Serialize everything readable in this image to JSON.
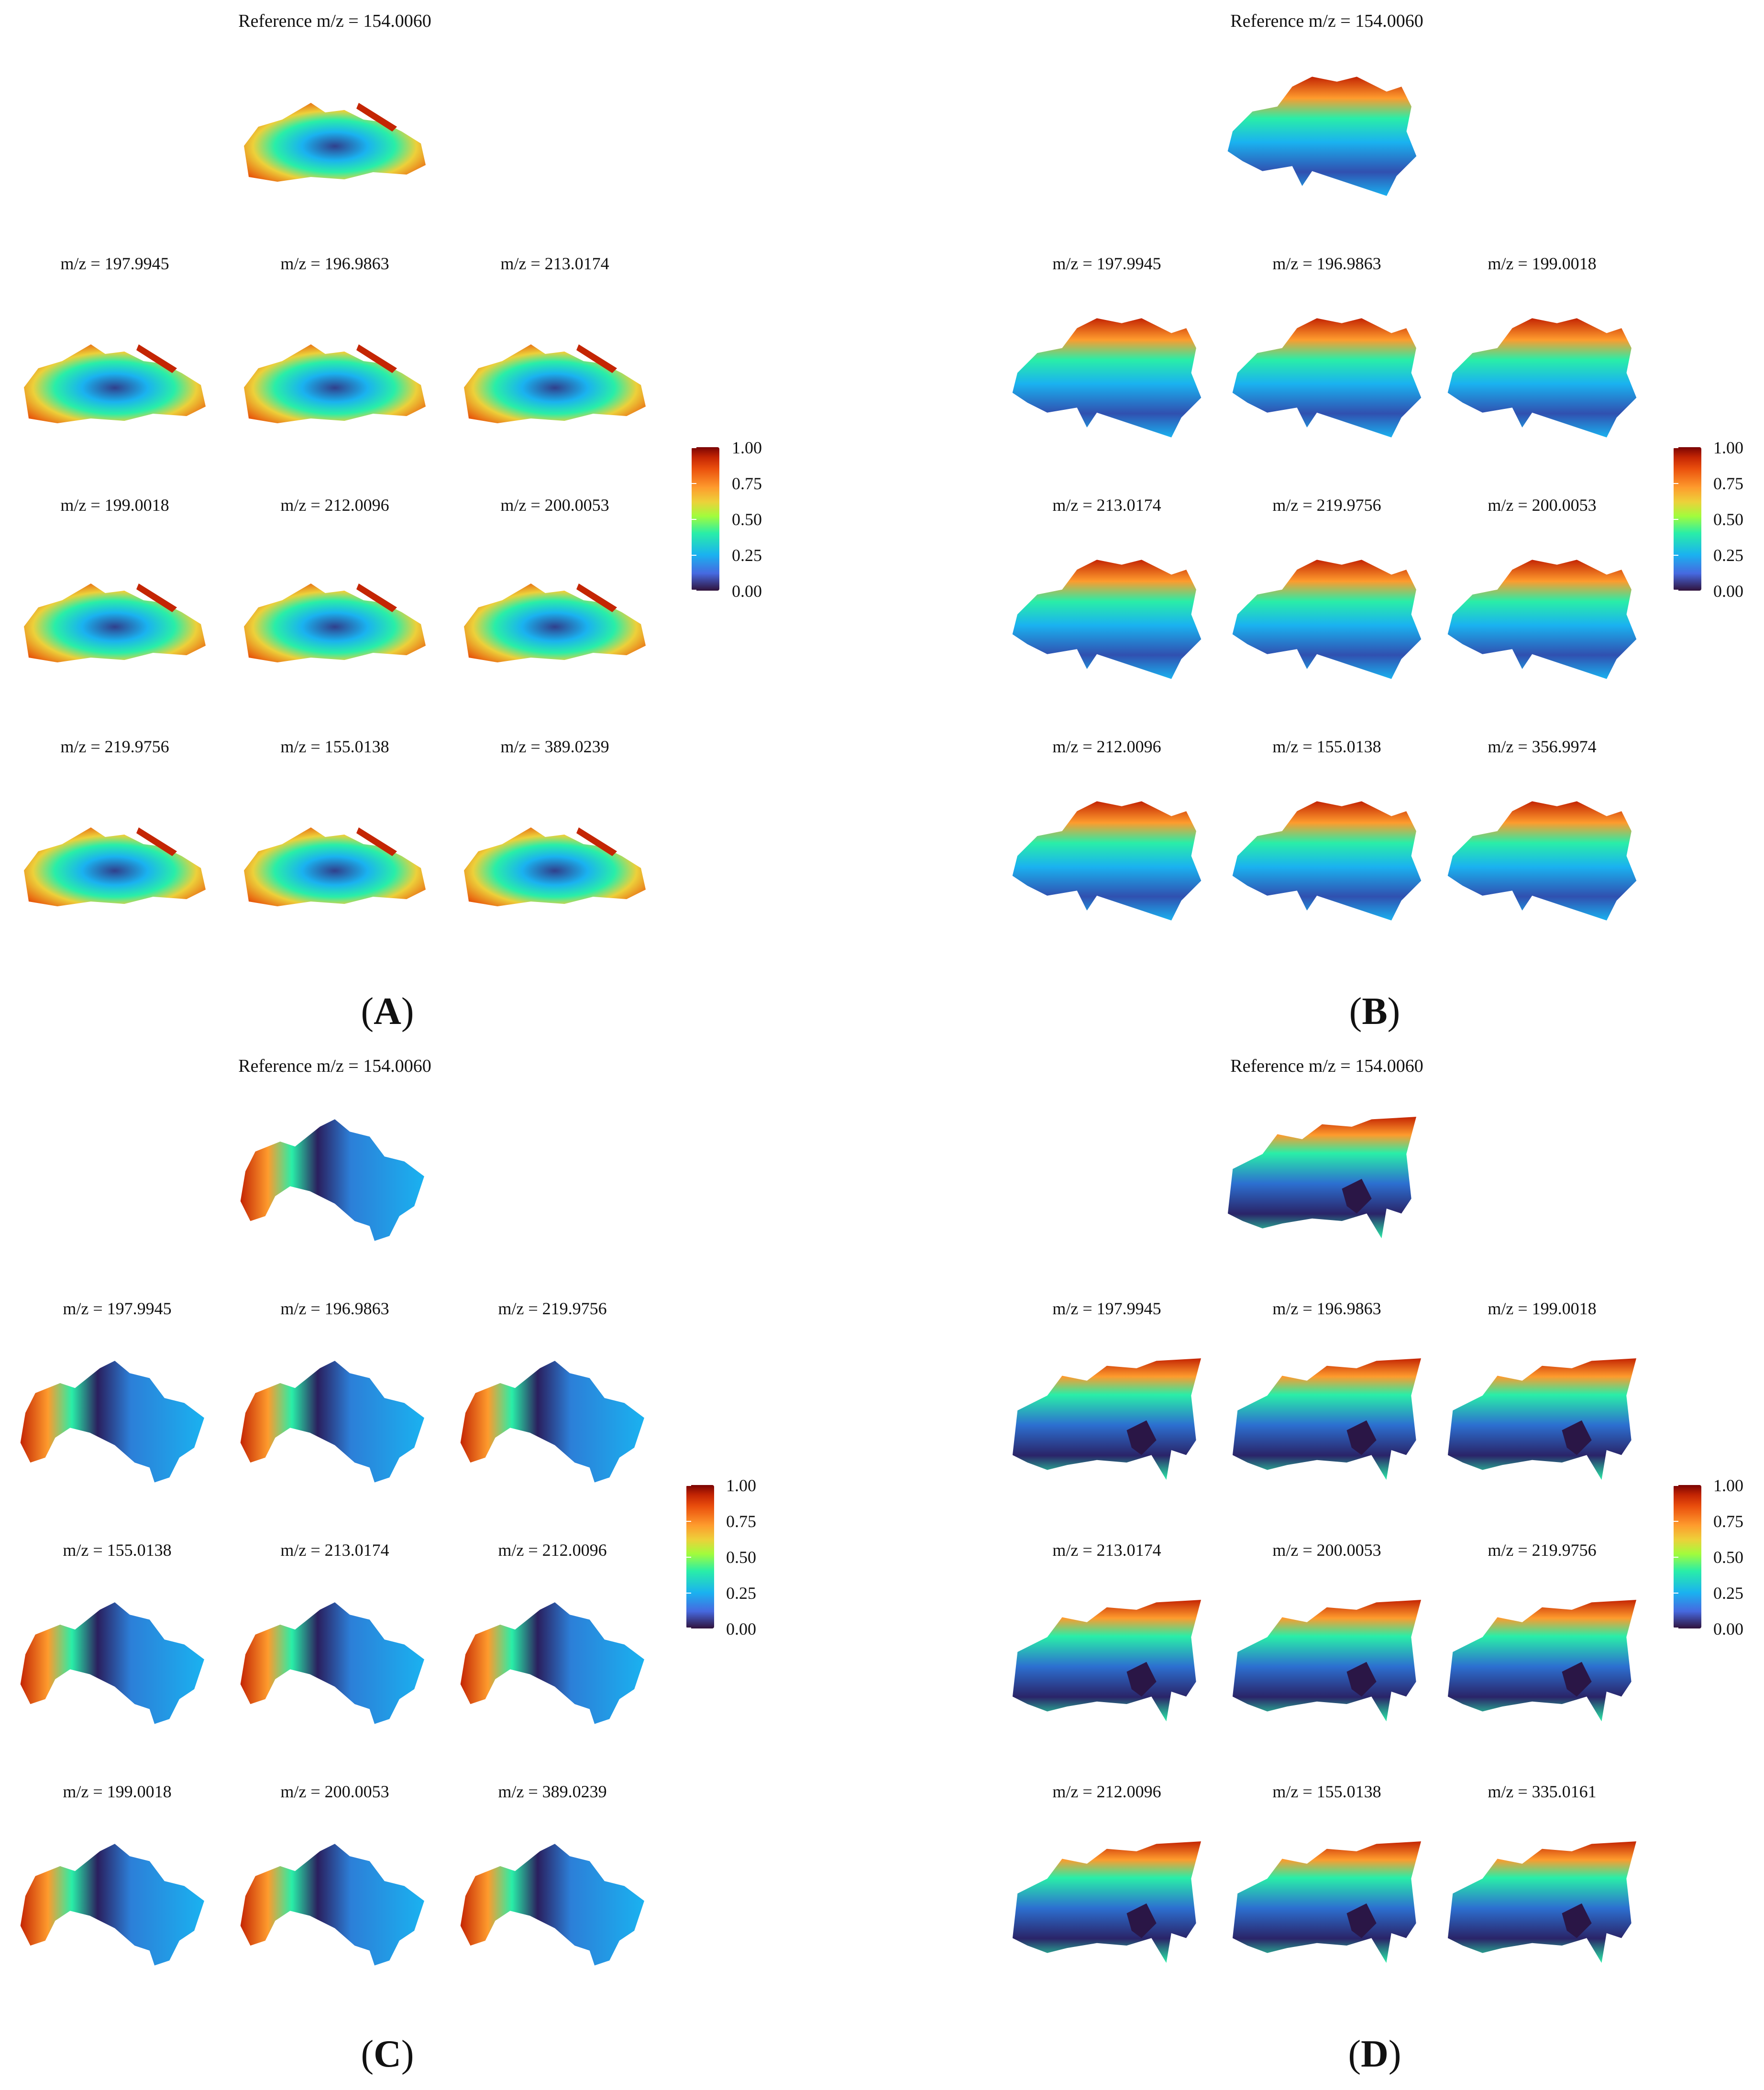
{
  "figure": {
    "reference_label": "Reference m/z = 154.0060",
    "colorbar_ticks": [
      "1.00",
      "0.75",
      "0.50",
      "0.25",
      "0.00"
    ],
    "panels": [
      {
        "letter": "A",
        "labels": [
          "m/z = 197.9945",
          "m/z = 196.9863",
          "m/z = 213.0174",
          "m/z = 199.0018",
          "m/z = 212.0096",
          "m/z = 200.0053",
          "m/z = 219.9756",
          "m/z = 155.0138",
          "m/z = 389.0239"
        ]
      },
      {
        "letter": "B",
        "labels": [
          "m/z = 197.9945",
          "m/z = 196.9863",
          "m/z = 199.0018",
          "m/z = 213.0174",
          "m/z = 219.9756",
          "m/z = 200.0053",
          "m/z = 212.0096",
          "m/z = 155.0138",
          "m/z = 356.9974"
        ]
      },
      {
        "letter": "C",
        "labels": [
          "m/z = 197.9945",
          "m/z = 196.9863",
          "m/z = 219.9756",
          "m/z = 155.0138",
          "m/z = 213.0174",
          "m/z = 212.0096",
          "m/z = 199.0018",
          "m/z = 200.0053",
          "m/z = 389.0239"
        ]
      },
      {
        "letter": "D",
        "labels": [
          "m/z = 197.9945",
          "m/z = 196.9863",
          "m/z = 199.0018",
          "m/z = 213.0174",
          "m/z = 200.0053",
          "m/z = 219.9756",
          "m/z = 212.0096",
          "m/z = 155.0138",
          "m/z = 335.0161"
        ]
      }
    ]
  }
}
